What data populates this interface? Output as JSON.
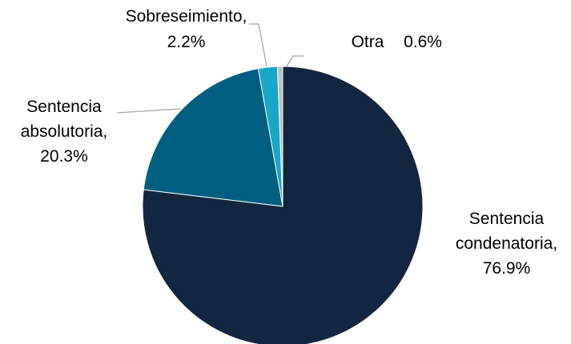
{
  "chart_data": {
    "type": "pie",
    "categories": [
      "Sentencia condenatoria,",
      "Sentencia absolutoria,",
      "Sobreseimiento,",
      "Otra"
    ],
    "values": [
      76.9,
      20.3,
      2.2,
      0.6
    ],
    "value_labels": [
      "76.9%",
      "20.3%",
      "2.2%",
      "0.6%"
    ],
    "colors": [
      "#12263f",
      "#005f80",
      "#17a7c9",
      "#bfbfbf"
    ]
  }
}
